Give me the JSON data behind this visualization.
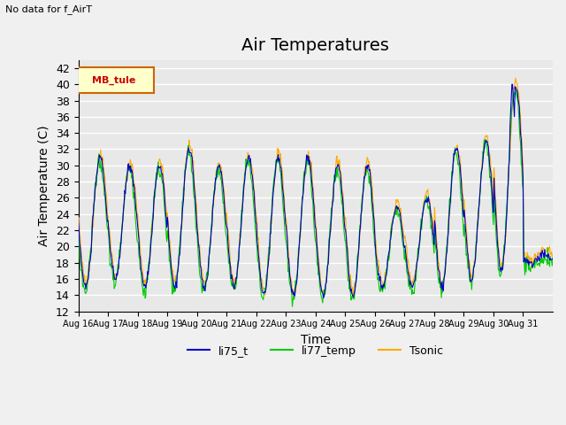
{
  "title": "Air Temperatures",
  "xlabel": "Time",
  "ylabel": "Air Temperature (C)",
  "no_data_text": "No data for f_AirT",
  "legend_label_text": "MB_tule",
  "ylim": [
    12,
    43
  ],
  "yticks": [
    12,
    14,
    16,
    18,
    20,
    22,
    24,
    26,
    28,
    30,
    32,
    34,
    36,
    38,
    40,
    42
  ],
  "xtick_labels": [
    "Aug 16",
    "Aug 17",
    "Aug 18",
    "Aug 19",
    "Aug 20",
    "Aug 21",
    "Aug 22",
    "Aug 23",
    "Aug 24",
    "Aug 25",
    "Aug 26",
    "Aug 27",
    "Aug 28",
    "Aug 29",
    "Aug 30",
    "Aug 31"
  ],
  "series": {
    "li75_t": {
      "color": "#0000cc",
      "label": "li75_t"
    },
    "li77_temp": {
      "color": "#00cc00",
      "label": "li77_temp"
    },
    "Tsonic": {
      "color": "#ffaa00",
      "label": "Tsonic"
    }
  },
  "fig_bg_color": "#f0f0f0",
  "plot_bg_color": "#e8e8e8",
  "grid_color": "#ffffff",
  "title_fontsize": 14,
  "label_fontsize": 10,
  "n_days": 16,
  "pts_per_day": 48,
  "day_mins": [
    15,
    16,
    15,
    15,
    15,
    15,
    14,
    14,
    14,
    14,
    15,
    15,
    15,
    16,
    17,
    18
  ],
  "day_maxs": [
    31,
    30,
    30,
    32,
    30,
    31,
    31,
    31,
    30,
    30,
    25,
    26,
    32,
    33,
    40,
    19
  ]
}
